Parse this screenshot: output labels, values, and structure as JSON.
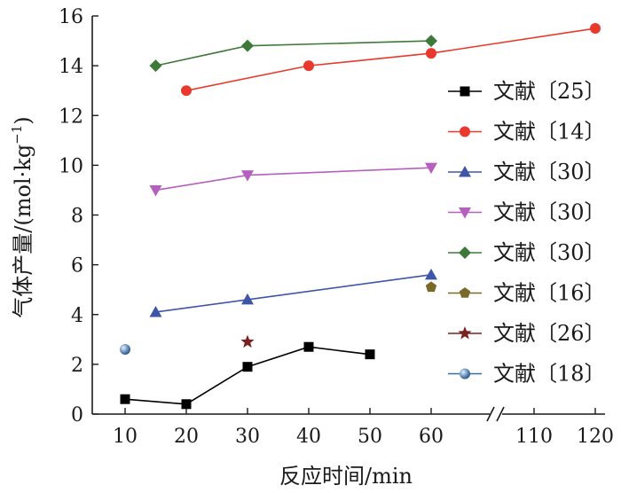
{
  "chart_data": {
    "type": "line",
    "xlabel": "反应时间/min",
    "ylabel": "气体产量/(mol·kg",
    "ylabel_sup": "−1",
    "ylabel_close": ")",
    "ylim": [
      0,
      16
    ],
    "yticks": [
      0,
      2,
      4,
      6,
      8,
      10,
      12,
      14,
      16
    ],
    "xticks": [
      "10",
      "20",
      "30",
      "40",
      "50",
      "60",
      "110",
      "120"
    ],
    "x_axis_break": "between 60 and 110",
    "legend_position": "right",
    "series": [
      {
        "name": "文献〔25〕",
        "marker": "square",
        "color": "#000000",
        "x": [
          10,
          20,
          30,
          40,
          50
        ],
        "y": [
          0.6,
          0.4,
          1.9,
          2.7,
          2.4
        ]
      },
      {
        "name": "文献〔14〕",
        "marker": "circle",
        "color": "#e8392c",
        "x": [
          20,
          40,
          60,
          120
        ],
        "y": [
          13.0,
          14.0,
          14.5,
          15.5
        ]
      },
      {
        "name": "文献〔30〕",
        "marker": "triangle-up",
        "color": "#3f56a8",
        "x": [
          15,
          30,
          60
        ],
        "y": [
          4.1,
          4.6,
          5.6
        ]
      },
      {
        "name": "文献〔30〕",
        "marker": "triangle-down",
        "color": "#b55fbf",
        "x": [
          15,
          30,
          60
        ],
        "y": [
          9.0,
          9.6,
          9.9
        ]
      },
      {
        "name": "文献〔30〕",
        "marker": "diamond",
        "color": "#3d7a3a",
        "x": [
          15,
          30,
          60
        ],
        "y": [
          14.0,
          14.8,
          15.0
        ]
      },
      {
        "name": "文献〔16〕",
        "marker": "pentagon",
        "color": "#7a6a2a",
        "x": [
          60
        ],
        "y": [
          5.1
        ]
      },
      {
        "name": "文献〔26〕",
        "marker": "star",
        "color": "#7a2020",
        "x": [
          30
        ],
        "y": [
          2.9
        ]
      },
      {
        "name": "文献〔18〕",
        "marker": "sphere",
        "color": "#3a6ea0",
        "x": [
          10
        ],
        "y": [
          2.6
        ]
      }
    ]
  }
}
